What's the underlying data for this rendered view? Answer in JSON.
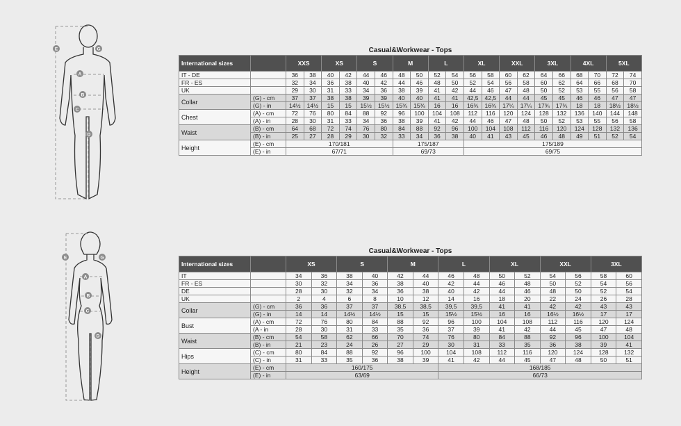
{
  "tables": [
    {
      "title": "Casual&Workwear - Tops",
      "header_label": "International sizes",
      "sizes": [
        "XXS",
        "XS",
        "S",
        "M",
        "L",
        "XL",
        "XXL",
        "3XL",
        "4XL",
        "5XL"
      ],
      "groups": [
        {
          "label": "IT - DE",
          "shaded": false,
          "rows": [
            {
              "sub": "",
              "values": [
                "36",
                "38",
                "40",
                "42",
                "44",
                "46",
                "48",
                "50",
                "52",
                "54",
                "56",
                "58",
                "60",
                "62",
                "64",
                "66",
                "68",
                "70",
                "72",
                "74"
              ]
            }
          ]
        },
        {
          "label": "FR - ES",
          "shaded": false,
          "rows": [
            {
              "sub": "",
              "values": [
                "32",
                "34",
                "36",
                "38",
                "40",
                "42",
                "44",
                "46",
                "48",
                "50",
                "52",
                "54",
                "56",
                "58",
                "60",
                "62",
                "64",
                "66",
                "68",
                "70"
              ]
            }
          ]
        },
        {
          "label": "UK",
          "shaded": false,
          "rows": [
            {
              "sub": "",
              "values": [
                "29",
                "30",
                "31",
                "33",
                "34",
                "36",
                "38",
                "39",
                "41",
                "42",
                "44",
                "46",
                "47",
                "48",
                "50",
                "52",
                "53",
                "55",
                "56",
                "58"
              ]
            }
          ]
        },
        {
          "label": "Collar",
          "shaded": true,
          "rows": [
            {
              "sub": "(G) - cm",
              "values": [
                "37",
                "37",
                "38",
                "38",
                "39",
                "39",
                "40",
                "40",
                "41",
                "41",
                "42,5",
                "42,5",
                "44",
                "44",
                "45",
                "45",
                "46",
                "46",
                "47",
                "47"
              ]
            },
            {
              "sub": "(G) - in",
              "values": [
                "14½",
                "14½",
                "15",
                "15",
                "15½",
                "15½",
                "15¾",
                "15¾",
                "16",
                "16",
                "16¾",
                "16¾",
                "17¼",
                "17¼",
                "17¾",
                "17¾",
                "18",
                "18",
                "18½",
                "18½"
              ]
            }
          ]
        },
        {
          "label": "Chest",
          "shaded": false,
          "rows": [
            {
              "sub": "(A) - cm",
              "values": [
                "72",
                "76",
                "80",
                "84",
                "88",
                "92",
                "96",
                "100",
                "104",
                "108",
                "112",
                "116",
                "120",
                "124",
                "128",
                "132",
                "136",
                "140",
                "144",
                "148"
              ]
            },
            {
              "sub": "(A) - in",
              "values": [
                "28",
                "30",
                "31",
                "33",
                "34",
                "36",
                "38",
                "39",
                "41",
                "42",
                "44",
                "46",
                "47",
                "48",
                "50",
                "52",
                "53",
                "55",
                "56",
                "58"
              ]
            }
          ]
        },
        {
          "label": "Waist",
          "shaded": true,
          "rows": [
            {
              "sub": "(B) - cm",
              "values": [
                "64",
                "68",
                "72",
                "74",
                "76",
                "80",
                "84",
                "88",
                "92",
                "96",
                "100",
                "104",
                "108",
                "112",
                "116",
                "120",
                "124",
                "128",
                "132",
                "136"
              ]
            },
            {
              "sub": "(B) - in",
              "values": [
                "25",
                "27",
                "28",
                "29",
                "30",
                "32",
                "33",
                "34",
                "36",
                "38",
                "40",
                "41",
                "43",
                "45",
                "46",
                "48",
                "49",
                "51",
                "52",
                "54"
              ]
            }
          ]
        },
        {
          "label": "Height",
          "shaded": false,
          "rows": [
            {
              "sub": "(E) - cm",
              "spans": [
                {
                  "value": "170/181",
                  "sizes": [
                    "XXS",
                    "XS",
                    "S"
                  ]
                },
                {
                  "value": "175/187",
                  "sizes": [
                    "M",
                    "L"
                  ]
                },
                {
                  "value": "175/189",
                  "sizes": [
                    "XL",
                    "XXL",
                    "3XL",
                    "4XL",
                    "5XL"
                  ]
                }
              ]
            },
            {
              "sub": "(E) - in",
              "spans": [
                {
                  "value": "67/71",
                  "sizes": [
                    "XXS",
                    "XS",
                    "S"
                  ]
                },
                {
                  "value": "69/73",
                  "sizes": [
                    "M",
                    "L"
                  ]
                },
                {
                  "value": "69/75",
                  "sizes": [
                    "XL",
                    "XXL",
                    "3XL",
                    "4XL",
                    "5XL"
                  ]
                }
              ]
            }
          ]
        }
      ]
    },
    {
      "title": "Casual&Workwear - Tops",
      "header_label": "International sizes",
      "sizes": [
        "XS",
        "S",
        "M",
        "L",
        "XL",
        "XXL",
        "3XL"
      ],
      "groups": [
        {
          "label": "IT",
          "shaded": false,
          "rows": [
            {
              "sub": "",
              "values": [
                "34",
                "36",
                "38",
                "40",
                "42",
                "44",
                "46",
                "48",
                "50",
                "52",
                "54",
                "56",
                "58",
                "60"
              ]
            }
          ]
        },
        {
          "label": "FR - ES",
          "shaded": false,
          "rows": [
            {
              "sub": "",
              "values": [
                "30",
                "32",
                "34",
                "36",
                "38",
                "40",
                "42",
                "44",
                "46",
                "48",
                "50",
                "52",
                "54",
                "56"
              ]
            }
          ]
        },
        {
          "label": "DE",
          "shaded": false,
          "rows": [
            {
              "sub": "",
              "values": [
                "28",
                "30",
                "32",
                "34",
                "36",
                "38",
                "40",
                "42",
                "44",
                "46",
                "48",
                "50",
                "52",
                "54"
              ]
            }
          ]
        },
        {
          "label": "UK",
          "shaded": false,
          "rows": [
            {
              "sub": "",
              "values": [
                "2",
                "4",
                "6",
                "8",
                "10",
                "12",
                "14",
                "16",
                "18",
                "20",
                "22",
                "24",
                "26",
                "28"
              ]
            }
          ]
        },
        {
          "label": "Collar",
          "shaded": true,
          "rows": [
            {
              "sub": "(G) - cm",
              "values": [
                "36",
                "36",
                "37",
                "37",
                "38,5",
                "38,5",
                "39,5",
                "39,5",
                "41",
                "41",
                "42",
                "42",
                "43",
                "43"
              ]
            },
            {
              "sub": "(G) - in",
              "values": [
                "14",
                "14",
                "14½",
                "14½",
                "15",
                "15",
                "15½",
                "15½",
                "16",
                "16",
                "16½",
                "16½",
                "17",
                "17"
              ]
            }
          ]
        },
        {
          "label": "Bust",
          "shaded": false,
          "rows": [
            {
              "sub": "(A) - cm",
              "values": [
                "72",
                "76",
                "80",
                "84",
                "88",
                "92",
                "96",
                "100",
                "104",
                "108",
                "112",
                "116",
                "120",
                "124"
              ]
            },
            {
              "sub": "(A - in",
              "values": [
                "28",
                "30",
                "31",
                "33",
                "35",
                "36",
                "37",
                "39",
                "41",
                "42",
                "44",
                "45",
                "47",
                "48"
              ]
            }
          ]
        },
        {
          "label": "Waist",
          "shaded": true,
          "rows": [
            {
              "sub": "(B) - cm",
              "values": [
                "54",
                "58",
                "62",
                "66",
                "70",
                "74",
                "76",
                "80",
                "84",
                "88",
                "92",
                "96",
                "100",
                "104"
              ]
            },
            {
              "sub": "(B) - in",
              "values": [
                "21",
                "23",
                "24",
                "26",
                "27",
                "29",
                "30",
                "31",
                "33",
                "35",
                "36",
                "38",
                "39",
                "41"
              ]
            }
          ]
        },
        {
          "label": "Hips",
          "shaded": false,
          "rows": [
            {
              "sub": "(C) - cm",
              "values": [
                "80",
                "84",
                "88",
                "92",
                "96",
                "100",
                "104",
                "108",
                "112",
                "116",
                "120",
                "124",
                "128",
                "132"
              ]
            },
            {
              "sub": "(C) - in",
              "values": [
                "31",
                "33",
                "35",
                "36",
                "38",
                "39",
                "41",
                "42",
                "44",
                "45",
                "47",
                "48",
                "50",
                "51"
              ]
            }
          ]
        },
        {
          "label": "Height",
          "shaded": true,
          "rows": [
            {
              "sub": "(E) - cm",
              "spans": [
                {
                  "value": "160/175",
                  "sizes": [
                    "XS",
                    "S",
                    "M"
                  ]
                },
                {
                  "value": "168/185",
                  "sizes": [
                    "L",
                    "XL",
                    "XXL",
                    "3XL"
                  ]
                }
              ]
            },
            {
              "sub": "(E) - in",
              "spans": [
                {
                  "value": "63/69",
                  "sizes": [
                    "XS",
                    "S",
                    "M"
                  ]
                },
                {
                  "value": "66/73",
                  "sizes": [
                    "L",
                    "XL",
                    "XXL",
                    "3XL"
                  ]
                }
              ]
            }
          ]
        }
      ]
    }
  ],
  "figures": [
    {
      "name": "male",
      "markers": [
        "E",
        "G",
        "A",
        "B",
        "C",
        "D"
      ]
    },
    {
      "name": "female",
      "markers": [
        "E",
        "G",
        "A",
        "B",
        "C",
        "D"
      ]
    }
  ],
  "colors": {
    "header": "#505050",
    "shaded_row": "#d9d9d9",
    "row": "#f6f6f6",
    "background": "#ececec",
    "marker": "#8c8c8c"
  }
}
